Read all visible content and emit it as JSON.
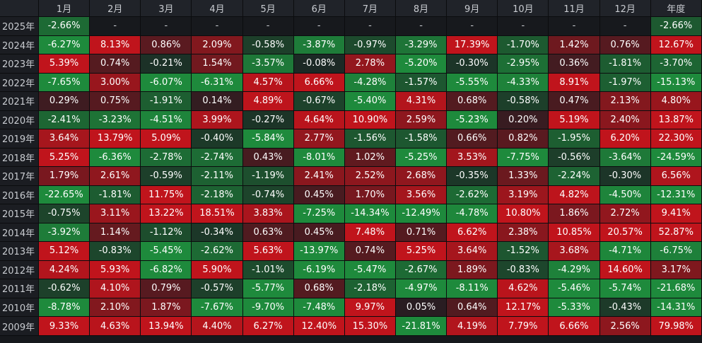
{
  "chart_data": {
    "type": "heatmap",
    "columns": [
      "1月",
      "2月",
      "3月",
      "4月",
      "5月",
      "6月",
      "7月",
      "8月",
      "9月",
      "10月",
      "11月",
      "12月",
      "年度"
    ],
    "rows": [
      {
        "year": "2025年",
        "values": [
          "-2.66%",
          "-",
          "-",
          "-",
          "-",
          "-",
          "-",
          "-",
          "-",
          "-",
          "-",
          "-",
          "-2.66%"
        ]
      },
      {
        "year": "2024年",
        "values": [
          "-6.27%",
          "8.13%",
          "0.86%",
          "2.09%",
          "-0.58%",
          "-3.87%",
          "-0.97%",
          "-3.29%",
          "17.39%",
          "-1.70%",
          "1.42%",
          "0.76%",
          "12.67%"
        ]
      },
      {
        "year": "2023年",
        "values": [
          "5.39%",
          "0.74%",
          "-0.21%",
          "1.54%",
          "-3.57%",
          "-0.08%",
          "2.78%",
          "-5.20%",
          "-0.30%",
          "-2.95%",
          "0.36%",
          "-1.81%",
          "-3.70%"
        ]
      },
      {
        "year": "2022年",
        "values": [
          "-7.65%",
          "3.00%",
          "-6.07%",
          "-6.31%",
          "4.57%",
          "6.66%",
          "-4.28%",
          "-1.57%",
          "-5.55%",
          "-4.33%",
          "8.91%",
          "-1.97%",
          "-15.13%"
        ]
      },
      {
        "year": "2021年",
        "values": [
          "0.29%",
          "0.75%",
          "-1.91%",
          "0.14%",
          "4.89%",
          "-0.67%",
          "-5.40%",
          "4.31%",
          "0.68%",
          "-0.58%",
          "0.47%",
          "2.13%",
          "4.80%"
        ]
      },
      {
        "year": "2020年",
        "values": [
          "-2.41%",
          "-3.23%",
          "-4.51%",
          "3.99%",
          "-0.27%",
          "4.64%",
          "10.90%",
          "2.59%",
          "-5.23%",
          "0.20%",
          "5.19%",
          "2.40%",
          "13.87%"
        ]
      },
      {
        "year": "2019年",
        "values": [
          "3.64%",
          "13.79%",
          "5.09%",
          "-0.40%",
          "-5.84%",
          "2.77%",
          "-1.56%",
          "-1.58%",
          "0.66%",
          "0.82%",
          "-1.95%",
          "6.20%",
          "22.30%"
        ]
      },
      {
        "year": "2018年",
        "values": [
          "5.25%",
          "-6.36%",
          "-2.78%",
          "-2.74%",
          "0.43%",
          "-8.01%",
          "1.02%",
          "-5.25%",
          "3.53%",
          "-7.75%",
          "-0.56%",
          "-3.64%",
          "-24.59%"
        ]
      },
      {
        "year": "2017年",
        "values": [
          "1.79%",
          "2.61%",
          "-0.59%",
          "-2.11%",
          "-1.19%",
          "2.41%",
          "2.52%",
          "2.68%",
          "-0.35%",
          "1.33%",
          "-2.24%",
          "-0.30%",
          "6.56%"
        ]
      },
      {
        "year": "2016年",
        "values": [
          "-22.65%",
          "-1.81%",
          "11.75%",
          "-2.18%",
          "-0.74%",
          "0.45%",
          "1.70%",
          "3.56%",
          "-2.62%",
          "3.19%",
          "4.82%",
          "-4.50%",
          "-12.31%"
        ]
      },
      {
        "year": "2015年",
        "values": [
          "-0.75%",
          "3.11%",
          "13.22%",
          "18.51%",
          "3.83%",
          "-7.25%",
          "-14.34%",
          "-12.49%",
          "-4.78%",
          "10.80%",
          "1.86%",
          "2.72%",
          "9.41%"
        ]
      },
      {
        "year": "2014年",
        "values": [
          "-3.92%",
          "1.14%",
          "-1.12%",
          "-0.34%",
          "0.63%",
          "0.45%",
          "7.48%",
          "0.71%",
          "6.62%",
          "2.38%",
          "10.85%",
          "20.57%",
          "52.87%"
        ]
      },
      {
        "year": "2013年",
        "values": [
          "5.12%",
          "-0.83%",
          "-5.45%",
          "-2.62%",
          "5.63%",
          "-13.97%",
          "0.74%",
          "5.25%",
          "3.64%",
          "-1.52%",
          "3.68%",
          "-4.71%",
          "-6.75%"
        ]
      },
      {
        "year": "2012年",
        "values": [
          "4.24%",
          "5.93%",
          "-6.82%",
          "5.90%",
          "-1.01%",
          "-6.19%",
          "-5.47%",
          "-2.67%",
          "1.89%",
          "-0.83%",
          "-4.29%",
          "14.60%",
          "3.17%"
        ]
      },
      {
        "year": "2011年",
        "values": [
          "-0.62%",
          "4.10%",
          "0.79%",
          "-0.57%",
          "-5.77%",
          "0.68%",
          "-2.18%",
          "-4.97%",
          "-8.11%",
          "4.62%",
          "-5.46%",
          "-5.74%",
          "-21.68%"
        ]
      },
      {
        "year": "2010年",
        "values": [
          "-8.78%",
          "2.10%",
          "1.87%",
          "-7.67%",
          "-9.70%",
          "-7.48%",
          "9.97%",
          "0.05%",
          "0.64%",
          "12.17%",
          "-5.33%",
          "-0.43%",
          "-14.31%"
        ]
      },
      {
        "year": "2009年",
        "values": [
          "9.33%",
          "4.63%",
          "13.94%",
          "4.40%",
          "6.27%",
          "12.40%",
          "15.30%",
          "-21.81%",
          "4.19%",
          "7.79%",
          "6.66%",
          "2.56%",
          "79.98%"
        ]
      }
    ]
  },
  "colors": {
    "positive_strong": "#c0141c",
    "negative_strong": "#1e8a3c",
    "neutral": "#1c1e22",
    "empty": "#17191d"
  }
}
